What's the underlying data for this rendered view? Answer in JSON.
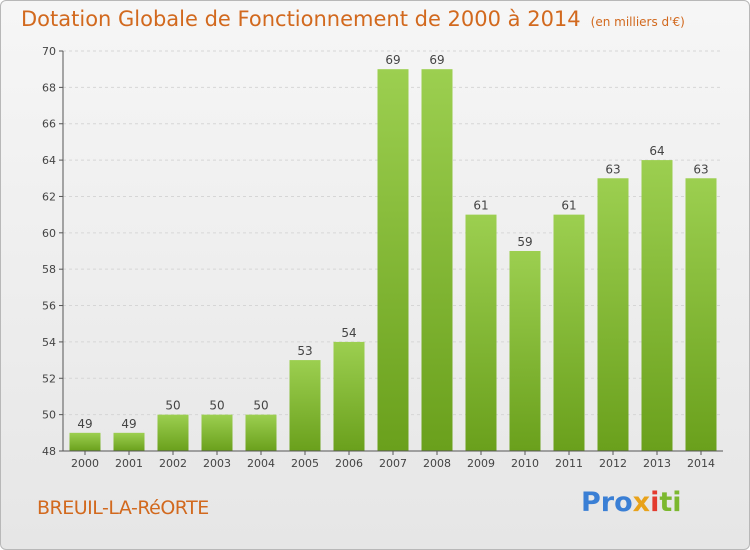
{
  "header": {
    "title": "Dotation Globale de Fonctionnement de 2000 à 2014",
    "subtitle": "(en milliers d'€)"
  },
  "footer": {
    "commune": "BREUIL-LA-RéORTE",
    "brand": "Proxiti",
    "brand_parts": [
      "Pro",
      "x",
      "i",
      "ti"
    ]
  },
  "colors": {
    "title": "#d2691e",
    "bar_top": "#9ccf50",
    "bar_bottom": "#6aa01c",
    "grid": "#d6d6d6",
    "axis": "#555555"
  },
  "chart_data": {
    "type": "bar",
    "categories": [
      "2000",
      "2001",
      "2002",
      "2003",
      "2004",
      "2005",
      "2006",
      "2007",
      "2008",
      "2009",
      "2010",
      "2011",
      "2012",
      "2013",
      "2014"
    ],
    "values": [
      49,
      49,
      50,
      50,
      50,
      53,
      54,
      69,
      69,
      61,
      59,
      61,
      63,
      64,
      63
    ],
    "ylim": [
      48,
      70
    ],
    "yticks": [
      48,
      50,
      52,
      54,
      56,
      58,
      60,
      62,
      64,
      66,
      68,
      70
    ],
    "grid": true,
    "xlabel": "",
    "ylabel": ""
  }
}
